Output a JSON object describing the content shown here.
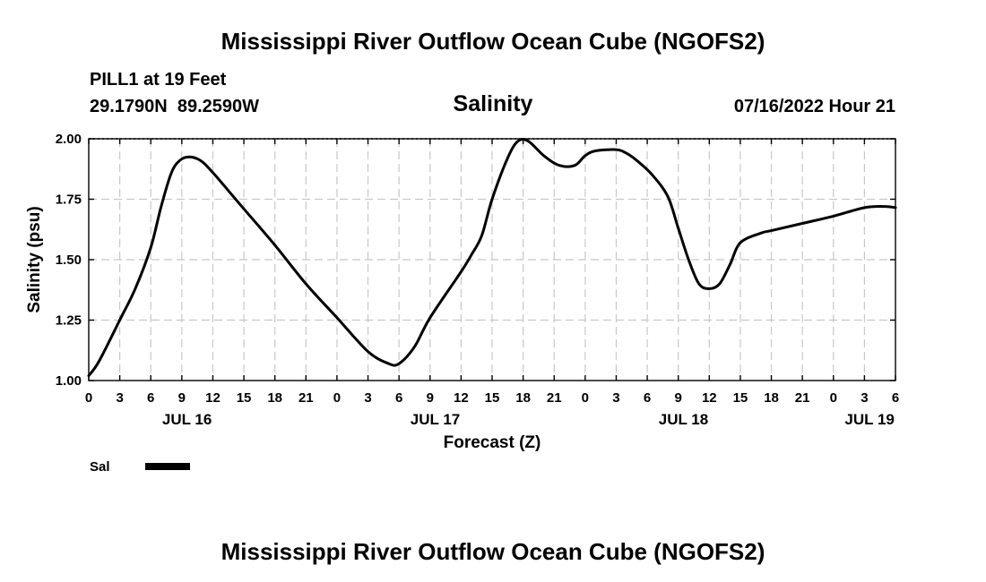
{
  "chart_data": {
    "type": "line",
    "title": "Mississippi River Outflow Ocean Cube (NGOFS2)",
    "station": "PILL1 at 19 Feet",
    "coordinates": "29.1790N  89.2590W",
    "subtitle": "Salinity",
    "valid_time": "07/16/2022 Hour 21",
    "xlabel": "Forecast (Z)",
    "ylabel": "Salinity (psu)",
    "x_unit": "hours since 00Z JUL 16",
    "xlim": [
      0,
      78
    ],
    "ylim": [
      1.0,
      2.0
    ],
    "grid": true,
    "x_ticks": [
      0,
      3,
      6,
      9,
      12,
      15,
      18,
      21,
      24,
      27,
      30,
      33,
      36,
      39,
      42,
      45,
      48,
      51,
      54,
      57,
      60,
      63,
      66,
      69,
      72,
      75,
      78
    ],
    "x_tick_labels": [
      "0",
      "3",
      "6",
      "9",
      "12",
      "15",
      "18",
      "21",
      "0",
      "3",
      "6",
      "9",
      "12",
      "15",
      "18",
      "21",
      "0",
      "3",
      "6",
      "9",
      "12",
      "15",
      "18",
      "21",
      "0",
      "3",
      "6"
    ],
    "y_ticks": [
      1.0,
      1.25,
      1.5,
      1.75,
      2.0
    ],
    "y_tick_labels": [
      "1.00",
      "1.25",
      "1.50",
      "1.75",
      "2.00"
    ],
    "date_labels": [
      {
        "x": 9.5,
        "label": "JUL 16"
      },
      {
        "x": 33.5,
        "label": "JUL 17"
      },
      {
        "x": 57.5,
        "label": "JUL 18"
      },
      {
        "x": 75.5,
        "label": "JUL 19"
      }
    ],
    "series": [
      {
        "name": "Sal",
        "x": [
          0,
          1,
          3,
          4.5,
          6,
          7,
          8,
          8.8,
          9.7,
          10.8,
          12,
          15,
          18,
          21,
          24,
          27,
          29,
          30,
          31.5,
          33,
          36,
          37,
          38,
          39,
          40.5,
          41.5,
          42.5,
          44,
          45.5,
          47,
          48,
          49,
          51,
          52,
          53,
          54.5,
          56,
          57,
          58,
          59,
          60,
          61,
          62,
          63,
          65,
          66,
          69,
          72,
          75,
          77,
          78
        ],
        "values": [
          1.02,
          1.08,
          1.25,
          1.38,
          1.55,
          1.72,
          1.86,
          1.91,
          1.925,
          1.91,
          1.86,
          1.71,
          1.56,
          1.4,
          1.26,
          1.12,
          1.07,
          1.07,
          1.14,
          1.26,
          1.45,
          1.52,
          1.6,
          1.75,
          1.92,
          1.99,
          1.99,
          1.93,
          1.89,
          1.89,
          1.93,
          1.95,
          1.955,
          1.94,
          1.91,
          1.85,
          1.76,
          1.63,
          1.5,
          1.4,
          1.38,
          1.4,
          1.48,
          1.57,
          1.61,
          1.62,
          1.65,
          1.68,
          1.715,
          1.72,
          1.715
        ]
      }
    ],
    "legend": {
      "label": "Sal",
      "placement": "bottom-left"
    },
    "footer_title": "Mississippi River Outflow Ocean Cube (NGOFS2)"
  }
}
